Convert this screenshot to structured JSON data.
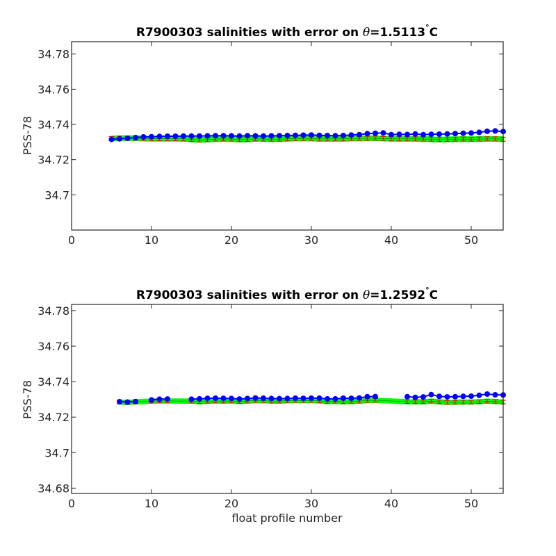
{
  "chart_data": [
    {
      "type": "line",
      "title_prefix": "R7900303 salinities with error on ",
      "title_theta": "θ",
      "title_value": "=1.5113",
      "title_degree": "°",
      "title_unit": "C",
      "ylabel": "PSS-78",
      "xlabel": "",
      "xlim": [
        0,
        54
      ],
      "ylim": [
        34.68,
        34.787
      ],
      "xticks": [
        0,
        10,
        20,
        30,
        40,
        50
      ],
      "xtick_labels": [
        "0",
        "10",
        "20",
        "30",
        "40",
        "50"
      ],
      "yticks": [
        34.7,
        34.72,
        34.74,
        34.76,
        34.78
      ],
      "ytick_labels": [
        "34.7",
        "34.72",
        "34.74",
        "34.76",
        "34.78"
      ],
      "grid": false,
      "colors": {
        "float": "#0000ff",
        "mapped": "#00ff00",
        "error": "#ff0000",
        "mapped_line": "#000000"
      },
      "series": [
        {
          "role": "float",
          "x": [
            5,
            6,
            7,
            8,
            9,
            10,
            11,
            12,
            13,
            14,
            15,
            16,
            17,
            18,
            19,
            20,
            21,
            22,
            23,
            24,
            25,
            26,
            27,
            28,
            29,
            30,
            31,
            32,
            33,
            34,
            35,
            36,
            37,
            38,
            39,
            40,
            41,
            42,
            43,
            44,
            45,
            46,
            47,
            48,
            49,
            50,
            51,
            52,
            53,
            54
          ],
          "y": [
            34.7315,
            34.7318,
            34.7321,
            34.7325,
            34.7329,
            34.733,
            34.7332,
            34.7333,
            34.7333,
            34.7334,
            34.7334,
            34.7334,
            34.7335,
            34.7336,
            34.7336,
            34.7335,
            34.7334,
            34.7336,
            34.7335,
            34.7334,
            34.7335,
            34.7336,
            34.7337,
            34.7338,
            34.7339,
            34.734,
            34.7338,
            34.7337,
            34.7336,
            34.7337,
            34.734,
            34.7342,
            34.7348,
            34.735,
            34.7352,
            34.7342,
            34.7344,
            34.7343,
            34.7346,
            34.7342,
            34.7344,
            34.7345,
            34.7346,
            34.7348,
            34.735,
            34.7351,
            34.7355,
            34.7361,
            34.7363,
            34.736
          ]
        },
        {
          "role": "mapped",
          "x": [
            5,
            6,
            7,
            8,
            9,
            10,
            11,
            12,
            13,
            14,
            15,
            16,
            17,
            18,
            19,
            20,
            21,
            22,
            23,
            24,
            25,
            26,
            27,
            28,
            29,
            30,
            31,
            32,
            33,
            34,
            35,
            36,
            37,
            38,
            39,
            40,
            41,
            42,
            43,
            44,
            45,
            46,
            47,
            48,
            49,
            50,
            51,
            52,
            53,
            54
          ],
          "y": [
            34.732,
            34.7322,
            34.7322,
            34.7322,
            34.732,
            34.7319,
            34.7319,
            34.7319,
            34.7319,
            34.7318,
            34.7315,
            34.7312,
            34.7314,
            34.7317,
            34.7318,
            34.7317,
            34.7314,
            34.7315,
            34.7318,
            34.7317,
            34.7316,
            34.7316,
            34.7318,
            34.732,
            34.7321,
            34.732,
            34.7318,
            34.7318,
            34.7318,
            34.7318,
            34.732,
            34.732,
            34.7321,
            34.7322,
            34.732,
            34.7318,
            34.7318,
            34.7318,
            34.7318,
            34.7317,
            34.7316,
            34.7314,
            34.7315,
            34.7316,
            34.7317,
            34.7316,
            34.7317,
            34.7318,
            34.7318,
            34.7316
          ],
          "error": 0.0023
        }
      ]
    },
    {
      "type": "line",
      "title_prefix": "R7900303 salinities with error on ",
      "title_theta": "θ",
      "title_value": "=1.2592",
      "title_degree": "°",
      "title_unit": "C",
      "ylabel": "PSS-78",
      "xlabel": "float profile number",
      "xlim": [
        0,
        54
      ],
      "ylim": [
        34.677,
        34.7835
      ],
      "xticks": [
        0,
        10,
        20,
        30,
        40,
        50
      ],
      "xtick_labels": [
        "0",
        "10",
        "20",
        "30",
        "40",
        "50"
      ],
      "yticks": [
        34.68,
        34.7,
        34.72,
        34.74,
        34.76,
        34.78
      ],
      "ytick_labels": [
        "34.68",
        "34.7",
        "34.72",
        "34.74",
        "34.76",
        "34.78"
      ],
      "grid": false,
      "colors": {
        "float": "#0000ff",
        "mapped": "#00ff00",
        "error": "#ff0000",
        "mapped_line": "#000000"
      },
      "series": [
        {
          "role": "float",
          "x": [
            6,
            7,
            8,
            10,
            11,
            12,
            15,
            16,
            17,
            18,
            19,
            20,
            21,
            22,
            23,
            24,
            25,
            26,
            27,
            28,
            29,
            30,
            31,
            32,
            33,
            34,
            35,
            36,
            37,
            38,
            42,
            43,
            44,
            45,
            46,
            47,
            48,
            49,
            50,
            51,
            52,
            53,
            54
          ],
          "y": [
            34.7287,
            34.7285,
            34.7288,
            34.7297,
            34.7301,
            34.7302,
            34.7301,
            34.7303,
            34.7306,
            34.7307,
            34.7306,
            34.7305,
            34.7302,
            34.7305,
            34.7308,
            34.7307,
            34.7305,
            34.7304,
            34.7305,
            34.7307,
            34.7306,
            34.7307,
            34.7307,
            34.7303,
            34.7303,
            34.7307,
            34.7306,
            34.7308,
            34.7315,
            34.7316,
            34.7315,
            34.7311,
            34.7314,
            34.7327,
            34.7317,
            34.7314,
            34.7315,
            34.7317,
            34.7318,
            34.7323,
            34.733,
            34.7326,
            34.7325
          ]
        },
        {
          "role": "mapped",
          "x": [
            6,
            7,
            8,
            10,
            11,
            12,
            15,
            16,
            17,
            18,
            19,
            20,
            21,
            22,
            23,
            24,
            25,
            26,
            27,
            28,
            29,
            30,
            31,
            32,
            33,
            34,
            35,
            36,
            37,
            38,
            42,
            43,
            44,
            45,
            46,
            47,
            48,
            49,
            50,
            51,
            52,
            53,
            54
          ],
          "y": [
            34.7285,
            34.7282,
            34.7286,
            34.729,
            34.7291,
            34.7291,
            34.729,
            34.7287,
            34.7289,
            34.7291,
            34.729,
            34.7291,
            34.7288,
            34.729,
            34.7293,
            34.7292,
            34.729,
            34.729,
            34.7292,
            34.7293,
            34.7293,
            34.7293,
            34.7291,
            34.7288,
            34.7289,
            34.7286,
            34.7288,
            34.729,
            34.7293,
            34.7295,
            34.7287,
            34.7286,
            34.7286,
            34.729,
            34.7286,
            34.7283,
            34.7284,
            34.7285,
            34.7285,
            34.7287,
            34.729,
            34.7288,
            34.7285
          ],
          "error": 0.002
        }
      ]
    }
  ]
}
